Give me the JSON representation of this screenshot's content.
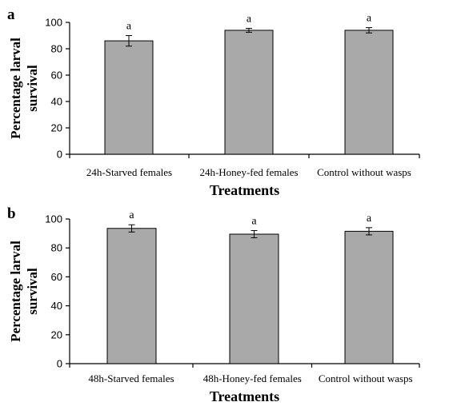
{
  "chart_data": [
    {
      "panel": "a",
      "type": "bar",
      "categories": [
        "24h-Starved females",
        "24h-Honey-fed females",
        "Control without wasps"
      ],
      "values": [
        86,
        94,
        94
      ],
      "errors": [
        4,
        1.5,
        2
      ],
      "significance": [
        "a",
        "a",
        "a"
      ],
      "xlabel": "Treatments",
      "ylabel": [
        "Percentage larval",
        "survival"
      ],
      "ylim": [
        0,
        100
      ],
      "yticks": [
        0,
        20,
        40,
        60,
        80,
        100
      ],
      "bar_color": "#a9a9a9",
      "grid": false
    },
    {
      "panel": "b",
      "type": "bar",
      "categories": [
        "48h-Starved females",
        "48h-Honey-fed females",
        "Control without wasps"
      ],
      "values": [
        93.5,
        89.5,
        91.5
      ],
      "errors": [
        2.5,
        2.5,
        2.5
      ],
      "significance": [
        "a",
        "a",
        "a"
      ],
      "xlabel": "Treatments",
      "ylabel": [
        "Percentage larval",
        "survival"
      ],
      "ylim": [
        0,
        100
      ],
      "yticks": [
        0,
        20,
        40,
        60,
        80,
        100
      ],
      "bar_color": "#a9a9a9",
      "grid": false
    }
  ]
}
